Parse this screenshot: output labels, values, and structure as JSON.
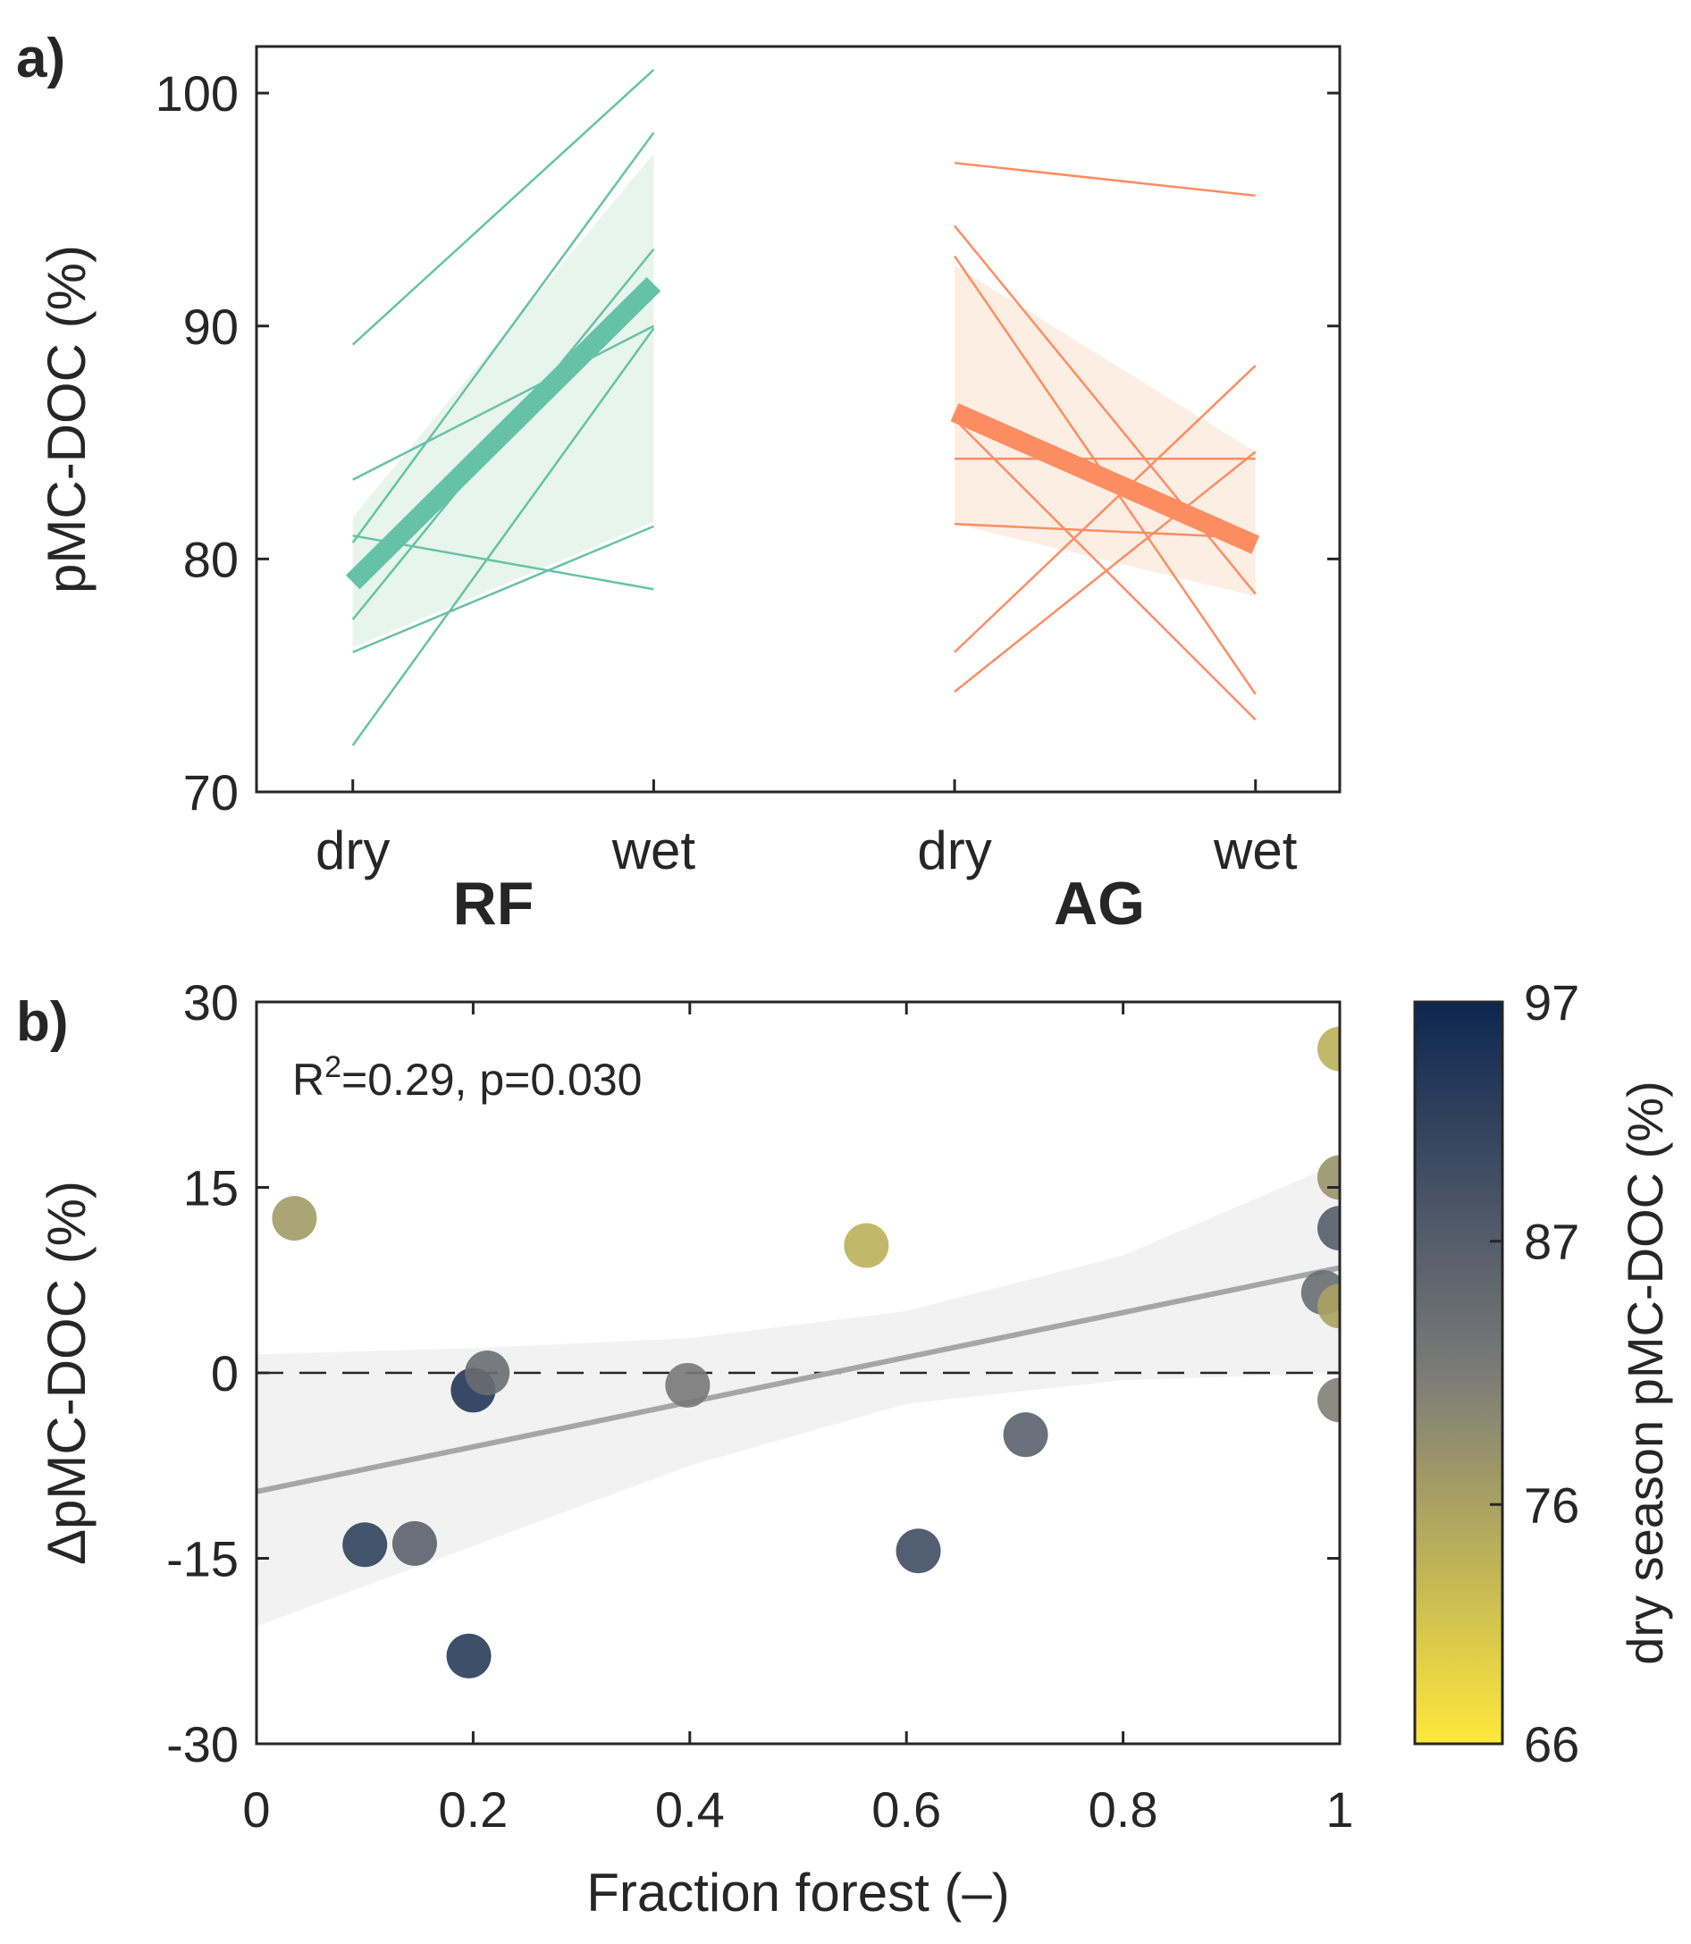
{
  "colors": {
    "rf": "#66c2a5",
    "rf_band": "#e8f4ee",
    "ag": "#fc8d62",
    "ag_band": "#fdeee4",
    "axis": "#262626",
    "fit_line": "#a6a6a6",
    "fit_band": "#f2f2f2",
    "colormap_low": "#ffe83a",
    "colormap_mid": "#7b7b78",
    "colormap_high": "#0d2650"
  },
  "chart_data": [
    {
      "panel_label": "a)",
      "type": "line",
      "ylabel": "pMC-DOC (%)",
      "ylim": [
        70,
        102
      ],
      "yticks": [
        "70",
        "80",
        "90",
        "100"
      ],
      "xlim": [
        0.7,
        9.7
      ],
      "season_labels": [
        "dry",
        "wet",
        "dry",
        "wet"
      ],
      "season_positions": [
        1.5,
        4,
        6.5,
        9
      ],
      "groups": [
        {
          "name": "RF",
          "dry_x": 1.5,
          "wet_x": 4,
          "mean": [
            79,
            91.8
          ],
          "band_lower": [
            76.2,
            81.6
          ],
          "band_upper": [
            81.8,
            97.4
          ],
          "pairs": [
            [
              89.2,
              101
            ],
            [
              83.4,
              90
            ],
            [
              81,
              78.7
            ],
            [
              80.7,
              98.3
            ],
            [
              77.4,
              93.3
            ],
            [
              76,
              81.4
            ],
            [
              72,
              89.9
            ]
          ]
        },
        {
          "name": "AG",
          "dry_x": 6.5,
          "wet_x": 9,
          "mean": [
            86.3,
            80.6
          ],
          "band_lower": [
            81.5,
            78.4
          ],
          "band_upper": [
            92.6,
            84.6
          ],
          "pairs": [
            [
              97,
              95.6
            ],
            [
              94.3,
              78.5
            ],
            [
              93,
              74.2
            ],
            [
              86,
              73.1
            ],
            [
              84.3,
              84.3
            ],
            [
              81.5,
              80.9
            ],
            [
              76,
              88.3
            ],
            [
              74.3,
              84.6
            ]
          ]
        }
      ]
    },
    {
      "panel_label": "b)",
      "type": "scatter",
      "xlabel": "Fraction forest (–)",
      "ylabel": "ΔpMC-DOC (%)",
      "xlim": [
        0,
        1
      ],
      "ylim": [
        -30,
        30
      ],
      "xticks": [
        "0",
        "0.2",
        "0.4",
        "0.6",
        "0.8",
        "1"
      ],
      "yticks": [
        "-30",
        "-15",
        "0",
        "15",
        "30"
      ],
      "annotation_pre": "R",
      "annotation_sup": "2",
      "annotation_post": "=0.29, p=0.030",
      "fit": {
        "x": [
          0,
          1
        ],
        "y": [
          -9.6,
          8.5
        ]
      },
      "ci_upper": {
        "x": [
          0,
          0.2,
          0.4,
          0.6,
          0.8,
          1
        ],
        "y": [
          1.5,
          2,
          2.8,
          5,
          9.5,
          17
        ]
      },
      "ci_lower": {
        "x": [
          0,
          0.2,
          0.4,
          0.6,
          0.8,
          1
        ],
        "y": [
          -20.5,
          -14,
          -7.5,
          -2.5,
          -0.6,
          0
        ]
      },
      "zero_line": 0,
      "points": [
        {
          "x": 0.035,
          "y": 12.5,
          "c": 77
        },
        {
          "x": 0.1,
          "y": -13.9,
          "c": 92
        },
        {
          "x": 0.146,
          "y": -13.8,
          "c": 86
        },
        {
          "x": 0.196,
          "y": -22.9,
          "c": 93
        },
        {
          "x": 0.2,
          "y": -1.4,
          "c": 94
        },
        {
          "x": 0.213,
          "y": 0,
          "c": 84
        },
        {
          "x": 0.398,
          "y": -1,
          "c": 82
        },
        {
          "x": 0.563,
          "y": 10.3,
          "c": 74
        },
        {
          "x": 0.611,
          "y": -14.4,
          "c": 90
        },
        {
          "x": 0.71,
          "y": -5,
          "c": 86
        },
        {
          "x": 0.985,
          "y": 6.5,
          "c": 84
        },
        {
          "x": 1,
          "y": 26.2,
          "c": 74
        },
        {
          "x": 1,
          "y": 15.8,
          "c": 78
        },
        {
          "x": 1,
          "y": 11.7,
          "c": 87
        },
        {
          "x": 1,
          "y": 5.4,
          "c": 76
        },
        {
          "x": 1,
          "y": -2.2,
          "c": 81
        }
      ],
      "colorbar": {
        "label": "dry season pMC-DOC (%)",
        "min": 66,
        "max": 97,
        "ticks": [
          "66",
          "76",
          "87",
          "97"
        ]
      }
    }
  ]
}
